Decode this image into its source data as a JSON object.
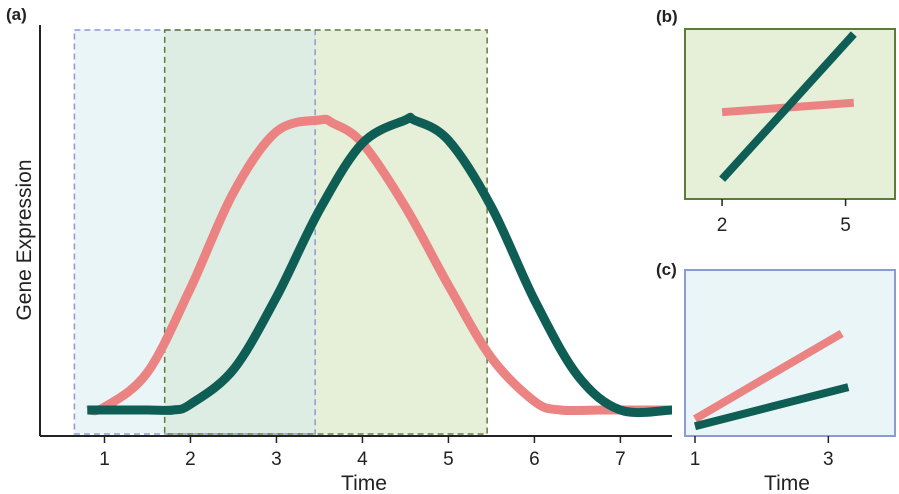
{
  "colors": {
    "early_gene": "#EB8383",
    "late_gene": "#0E5E55",
    "window_blue_fill": "#EAF5F7",
    "window_blue_border": "#8C9BD6",
    "window_green_fill": "#E6EFD8",
    "window_green_border": "#5E7B3A",
    "window_overlap_fill": "#DDEDE4"
  },
  "chart_data": [
    {
      "panel": "(a)",
      "type": "line",
      "xlabel": "Time",
      "ylabel": "Gene Expression",
      "xlim": [
        0.25,
        7.6
      ],
      "ylim": [
        0,
        1.1
      ],
      "x_ticks": [
        1,
        2,
        3,
        4,
        5,
        6,
        7
      ],
      "grid": false,
      "legend": "none",
      "series": [
        {
          "color": "#EB8383",
          "x": [
            0.8,
            1.0,
            1.5,
            2.0,
            2.5,
            3.0,
            3.5,
            3.65,
            4.0,
            4.5,
            5.0,
            5.5,
            6.0,
            6.3,
            6.8,
            7.6
          ],
          "y": [
            0.0,
            0.01,
            0.13,
            0.42,
            0.75,
            0.96,
            1.0,
            0.99,
            0.92,
            0.7,
            0.43,
            0.18,
            0.03,
            0.0,
            0.0,
            0.0
          ]
        },
        {
          "color": "#0E5E55",
          "x": [
            0.8,
            1.0,
            1.5,
            1.8,
            2.0,
            2.5,
            3.0,
            3.5,
            4.0,
            4.5,
            4.6,
            5.0,
            5.5,
            6.0,
            6.5,
            7.0,
            7.6
          ],
          "y": [
            0.0,
            0.0,
            0.0,
            0.0,
            0.02,
            0.14,
            0.39,
            0.69,
            0.92,
            1.0,
            1.0,
            0.93,
            0.7,
            0.38,
            0.12,
            0.0,
            0.0
          ]
        }
      ],
      "shaded_windows": [
        {
          "x0": 0.65,
          "x1": 3.45,
          "color": "blue"
        },
        {
          "x0": 1.7,
          "x1": 5.45,
          "color": "green"
        }
      ]
    },
    {
      "panel": "(b)",
      "type": "line",
      "xlabel": "",
      "ylabel": "",
      "x_ticks": [
        2,
        5
      ],
      "xlim": [
        1.1,
        6.2
      ],
      "ylim": [
        0,
        1
      ],
      "background": "green",
      "series": [
        {
          "color": "#EB8383",
          "x": [
            2.0,
            5.2
          ],
          "y": [
            0.48,
            0.54
          ]
        },
        {
          "color": "#0E5E55",
          "x": [
            2.0,
            5.2
          ],
          "y": [
            0.05,
            0.98
          ]
        }
      ]
    },
    {
      "panel": "(c)",
      "type": "line",
      "xlabel": "Time",
      "ylabel": "",
      "x_ticks": [
        1,
        3
      ],
      "xlim": [
        0.85,
        4.0
      ],
      "ylim": [
        0,
        1
      ],
      "background": "blue",
      "series": [
        {
          "color": "#EB8383",
          "x": [
            1.0,
            3.2
          ],
          "y": [
            0.2,
            0.79
          ]
        },
        {
          "color": "#0E5E55",
          "x": [
            1.0,
            3.3
          ],
          "y": [
            0.15,
            0.42
          ]
        }
      ]
    }
  ]
}
